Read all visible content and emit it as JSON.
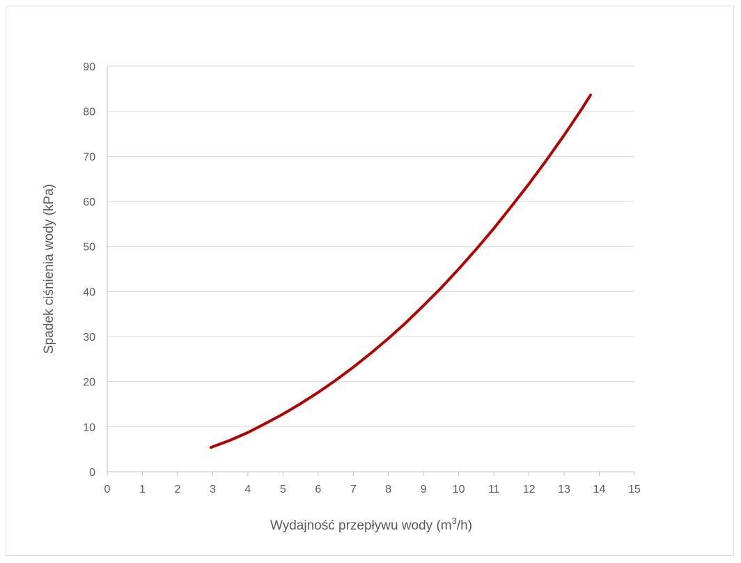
{
  "chart_data": {
    "type": "line",
    "title": "",
    "xlabel": "Wydajność przepływu wody (m",
    "xlabel_sup": "3",
    "xlabel_tail": "/h)",
    "ylabel": "Spadek ciśnienia wody (kPa)",
    "xlim": [
      0,
      15
    ],
    "ylim": [
      0,
      90
    ],
    "xticks": [
      "0",
      "1",
      "2",
      "3",
      "4",
      "5",
      "6",
      "7",
      "8",
      "9",
      "10",
      "11",
      "12",
      "13",
      "14",
      "15"
    ],
    "yticks": [
      "0",
      "10",
      "20",
      "30",
      "40",
      "50",
      "60",
      "70",
      "80",
      "90"
    ],
    "grid": "horizontal",
    "legend": "none",
    "series": [
      {
        "color": "#c00000",
        "dash_color": "#8b0000",
        "x": [
          2.95,
          3.5,
          4,
          4.5,
          5,
          5.5,
          6,
          6.5,
          7,
          7.5,
          8,
          8.5,
          9,
          9.5,
          10,
          10.5,
          11,
          11.5,
          12,
          12.5,
          13,
          13.5,
          13.75
        ],
        "y": [
          5.4,
          7.0,
          8.7,
          10.7,
          12.8,
          15.1,
          17.6,
          20.3,
          23.2,
          26.3,
          29.6,
          33.1,
          36.9,
          40.8,
          45.0,
          49.4,
          54.0,
          58.9,
          63.9,
          69.2,
          74.7,
          80.5,
          83.6
        ]
      }
    ]
  }
}
